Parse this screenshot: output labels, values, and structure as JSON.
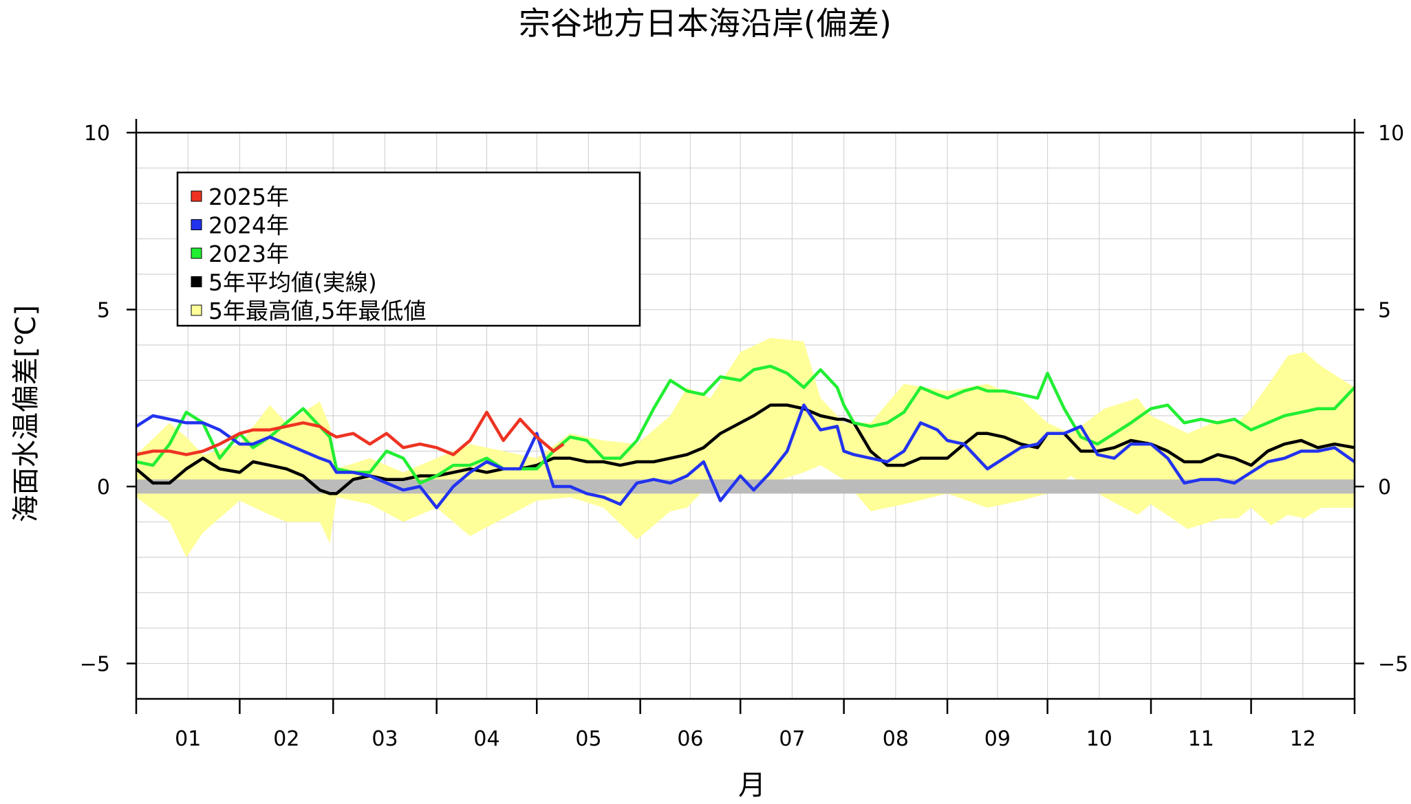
{
  "chart_data": {
    "type": "line",
    "title": "宗谷地方日本海沿岸(偏差)",
    "xlabel": "月",
    "ylabel": "海面水温偏差[℃]",
    "ylim": [
      -6,
      10
    ],
    "yticks": [
      -5,
      0,
      5,
      10
    ],
    "ytick_labels": [
      "−5",
      "0",
      "5",
      "10"
    ],
    "xlim": [
      0,
      365
    ],
    "months": [
      "01",
      "02",
      "03",
      "04",
      "05",
      "06",
      "07",
      "08",
      "09",
      "10",
      "11",
      "12"
    ],
    "month_start_days": [
      0,
      31,
      59,
      90,
      120,
      151,
      181,
      212,
      243,
      273,
      304,
      334,
      365
    ],
    "grid": true,
    "legend_position": "top-left",
    "legend": [
      {
        "label": "2025年",
        "color": "#ee3322"
      },
      {
        "label": "2024年",
        "color": "#2233ee"
      },
      {
        "label": "2023年",
        "color": "#22ee33"
      },
      {
        "label": "5年平均値(実線)",
        "color": "#000000"
      },
      {
        "label": "5年最高値,5年最低値",
        "color": "#ffff99"
      }
    ],
    "zero_band_color": "#bbbbbb",
    "envelope": {
      "name": "5年最高値,5年最低値",
      "color": "#ffff99",
      "x": [
        0,
        10,
        15,
        20,
        31,
        40,
        45,
        55,
        58,
        60,
        70,
        80,
        90,
        100,
        110,
        120,
        130,
        140,
        150,
        160,
        165,
        172,
        181,
        190,
        200,
        205,
        212,
        220,
        230,
        243,
        255,
        265,
        273,
        280,
        290,
        300,
        304,
        315,
        325,
        330,
        334,
        340,
        345,
        350,
        355,
        365
      ],
      "upper": [
        0.9,
        1.8,
        1.4,
        0.9,
        1.2,
        2.3,
        1.8,
        2.4,
        1.7,
        0.5,
        0.8,
        0.4,
        0.8,
        1.2,
        1.0,
        0.8,
        1.5,
        1.3,
        1.2,
        2.0,
        2.8,
        2.5,
        3.8,
        4.2,
        4.1,
        2.5,
        1.8,
        1.8,
        2.9,
        2.7,
        2.9,
        2.5,
        1.8,
        1.5,
        2.2,
        2.5,
        2.0,
        1.5,
        1.9,
        1.8,
        2.2,
        3.0,
        3.7,
        3.8,
        3.4,
        2.8
      ],
      "lower": [
        -0.3,
        -1.0,
        -2.0,
        -1.3,
        -0.4,
        -0.8,
        -1.0,
        -1.0,
        -1.6,
        -0.3,
        -0.5,
        -1.0,
        -0.6,
        -1.4,
        -0.9,
        -0.4,
        -0.3,
        -0.6,
        -1.5,
        -0.7,
        -0.6,
        0.1,
        0.0,
        0.1,
        0.4,
        0.6,
        0.2,
        -0.7,
        -0.5,
        -0.2,
        -0.6,
        -0.4,
        -0.2,
        0.3,
        -0.3,
        -0.8,
        -0.5,
        -1.2,
        -0.9,
        -0.9,
        -0.6,
        -1.1,
        -0.8,
        -0.9,
        -0.6,
        -0.6
      ]
    },
    "series": [
      {
        "name": "5年平均値(実線)",
        "color": "#000000",
        "x": [
          0,
          5,
          10,
          15,
          20,
          25,
          31,
          35,
          40,
          45,
          50,
          55,
          58,
          60,
          65,
          70,
          75,
          80,
          85,
          90,
          95,
          100,
          105,
          110,
          115,
          120,
          125,
          130,
          135,
          140,
          145,
          150,
          155,
          160,
          165,
          170,
          175,
          181,
          185,
          190,
          195,
          200,
          205,
          210,
          212,
          215,
          220,
          225,
          230,
          235,
          240,
          243,
          248,
          252,
          255,
          260,
          265,
          270,
          273,
          278,
          283,
          288,
          293,
          298,
          304,
          309,
          314,
          319,
          324,
          329,
          334,
          339,
          344,
          349,
          354,
          359,
          365
        ],
        "y": [
          0.5,
          0.1,
          0.1,
          0.5,
          0.8,
          0.5,
          0.4,
          0.7,
          0.6,
          0.5,
          0.3,
          -0.1,
          -0.2,
          -0.2,
          0.2,
          0.3,
          0.2,
          0.2,
          0.3,
          0.3,
          0.4,
          0.5,
          0.4,
          0.5,
          0.5,
          0.6,
          0.8,
          0.8,
          0.7,
          0.7,
          0.6,
          0.7,
          0.7,
          0.8,
          0.9,
          1.1,
          1.5,
          1.8,
          2.0,
          2.3,
          2.3,
          2.2,
          2.0,
          1.9,
          1.9,
          1.8,
          1.0,
          0.6,
          0.6,
          0.8,
          0.8,
          0.8,
          1.2,
          1.5,
          1.5,
          1.4,
          1.2,
          1.1,
          1.5,
          1.5,
          1.0,
          1.0,
          1.1,
          1.3,
          1.2,
          1.0,
          0.7,
          0.7,
          0.9,
          0.8,
          0.6,
          1.0,
          1.2,
          1.3,
          1.1,
          1.2,
          1.1
        ]
      },
      {
        "name": "2023年",
        "color": "#22ee33",
        "x": [
          0,
          5,
          10,
          15,
          20,
          25,
          31,
          35,
          40,
          45,
          50,
          55,
          58,
          60,
          65,
          70,
          75,
          80,
          85,
          90,
          95,
          100,
          105,
          110,
          115,
          120,
          125,
          130,
          135,
          140,
          145,
          150,
          155,
          160,
          165,
          170,
          175,
          181,
          185,
          190,
          195,
          200,
          205,
          210,
          212,
          215,
          220,
          225,
          230,
          235,
          240,
          243,
          248,
          252,
          255,
          260,
          265,
          270,
          273,
          278,
          283,
          288,
          293,
          298,
          304,
          309,
          314,
          319,
          324,
          329,
          334,
          339,
          344,
          349,
          354,
          359,
          365
        ],
        "y": [
          0.7,
          0.6,
          1.2,
          2.1,
          1.8,
          0.8,
          1.5,
          1.1,
          1.4,
          1.8,
          2.2,
          1.7,
          1.4,
          0.5,
          0.4,
          0.4,
          1.0,
          0.8,
          0.1,
          0.3,
          0.6,
          0.6,
          0.8,
          0.5,
          0.5,
          0.5,
          1.0,
          1.4,
          1.3,
          0.8,
          0.8,
          1.3,
          2.2,
          3.0,
          2.7,
          2.6,
          3.1,
          3.0,
          3.3,
          3.4,
          3.2,
          2.8,
          3.3,
          2.8,
          2.3,
          1.8,
          1.7,
          1.8,
          2.1,
          2.8,
          2.6,
          2.5,
          2.7,
          2.8,
          2.7,
          2.7,
          2.6,
          2.5,
          3.2,
          2.2,
          1.4,
          1.2,
          1.5,
          1.8,
          2.2,
          2.3,
          1.8,
          1.9,
          1.8,
          1.9,
          1.6,
          1.8,
          2.0,
          2.1,
          2.2,
          2.2,
          2.8
        ]
      },
      {
        "name": "2024年",
        "color": "#2233ee",
        "x": [
          0,
          5,
          10,
          15,
          20,
          25,
          31,
          35,
          40,
          45,
          50,
          55,
          58,
          60,
          65,
          70,
          75,
          80,
          85,
          90,
          95,
          100,
          105,
          110,
          115,
          120,
          125,
          130,
          135,
          140,
          145,
          150,
          155,
          160,
          165,
          170,
          175,
          181,
          185,
          190,
          195,
          200,
          205,
          210,
          212,
          215,
          220,
          225,
          230,
          235,
          240,
          243,
          248,
          252,
          255,
          260,
          265,
          270,
          273,
          278,
          283,
          288,
          293,
          298,
          304,
          309,
          314,
          319,
          324,
          329,
          334,
          339,
          344,
          349,
          354,
          359,
          365
        ],
        "y": [
          1.7,
          2.0,
          1.9,
          1.8,
          1.8,
          1.6,
          1.2,
          1.2,
          1.4,
          1.2,
          1.0,
          0.8,
          0.7,
          0.4,
          0.4,
          0.3,
          0.1,
          -0.1,
          0.0,
          -0.6,
          0.0,
          0.4,
          0.7,
          0.5,
          0.5,
          1.5,
          0.0,
          0.0,
          -0.2,
          -0.3,
          -0.5,
          0.1,
          0.2,
          0.1,
          0.3,
          0.7,
          -0.4,
          0.3,
          -0.1,
          0.4,
          1.0,
          2.3,
          1.6,
          1.7,
          1.0,
          0.9,
          0.8,
          0.7,
          1.0,
          1.8,
          1.6,
          1.3,
          1.2,
          0.8,
          0.5,
          0.8,
          1.1,
          1.2,
          1.5,
          1.5,
          1.7,
          0.9,
          0.8,
          1.2,
          1.2,
          0.8,
          0.1,
          0.2,
          0.2,
          0.1,
          0.4,
          0.7,
          0.8,
          1.0,
          1.0,
          1.1,
          0.7
        ]
      },
      {
        "name": "2025年",
        "color": "#ee3322",
        "x": [
          0,
          5,
          10,
          15,
          20,
          25,
          31,
          35,
          40,
          45,
          50,
          55,
          58,
          60,
          65,
          70,
          75,
          80,
          85,
          90,
          95,
          100,
          105,
          110,
          115,
          120,
          125,
          128
        ],
        "y": [
          0.9,
          1.0,
          1.0,
          0.9,
          1.0,
          1.2,
          1.5,
          1.6,
          1.6,
          1.7,
          1.8,
          1.7,
          1.5,
          1.4,
          1.5,
          1.2,
          1.5,
          1.1,
          1.2,
          1.1,
          0.9,
          1.3,
          2.1,
          1.3,
          1.9,
          1.4,
          1.0,
          1.2
        ]
      }
    ]
  }
}
